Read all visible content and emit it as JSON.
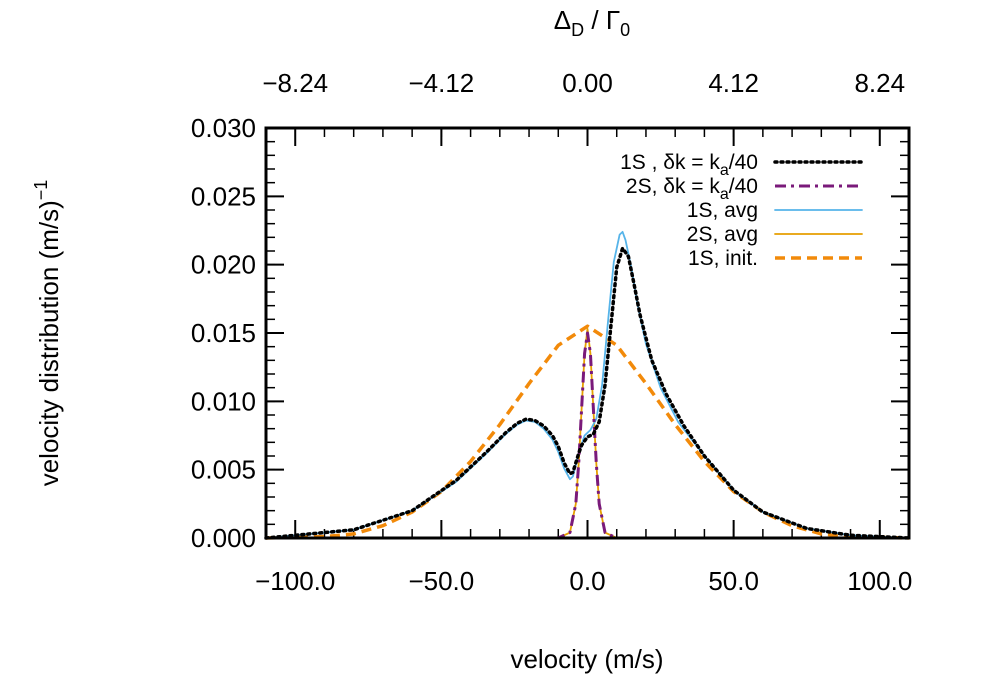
{
  "chart_data": {
    "type": "line",
    "xlabel": "velocity (m/s)",
    "ylabel": {
      "main": "velocity distribution (m/s)",
      "sup": "−1"
    },
    "top_axis_label": {
      "base": "Δ",
      "sub1": "D",
      "mid": " / Γ",
      "sub2": "0"
    },
    "xlim": [
      -110,
      110
    ],
    "ylim": [
      0,
      0.03
    ],
    "x_ticks": [
      {
        "value": -100,
        "label": "−100.0"
      },
      {
        "value": -50,
        "label": "−50.0"
      },
      {
        "value": 0,
        "label": "0.0"
      },
      {
        "value": 50,
        "label": "50.0"
      },
      {
        "value": 100,
        "label": "100.0"
      }
    ],
    "top_ticks": [
      {
        "value": -100,
        "label": "−8.24"
      },
      {
        "value": -50,
        "label": "−4.12"
      },
      {
        "value": 0,
        "label": "0.00"
      },
      {
        "value": 50,
        "label": "4.12"
      },
      {
        "value": 100,
        "label": "8.24"
      }
    ],
    "y_ticks": [
      {
        "value": 0.0,
        "label": "0.000"
      },
      {
        "value": 0.005,
        "label": "0.005"
      },
      {
        "value": 0.01,
        "label": "0.010"
      },
      {
        "value": 0.015,
        "label": "0.015"
      },
      {
        "value": 0.02,
        "label": "0.020"
      },
      {
        "value": 0.025,
        "label": "0.025"
      },
      {
        "value": 0.03,
        "label": "0.030"
      }
    ],
    "legend_position": "top-right",
    "series": [
      {
        "legend": {
          "main": "1S , δk = k",
          "sub": "a",
          "tail": "/40"
        },
        "color": "#000000",
        "style": "dotted",
        "points": [
          [
            -110,
            0.0
          ],
          [
            -80,
            0.0006
          ],
          [
            -60,
            0.002
          ],
          [
            -45,
            0.0042
          ],
          [
            -35,
            0.0062
          ],
          [
            -28,
            0.0077
          ],
          [
            -24,
            0.0084
          ],
          [
            -21,
            0.0087
          ],
          [
            -18,
            0.0086
          ],
          [
            -15,
            0.0082
          ],
          [
            -12,
            0.0075
          ],
          [
            -10,
            0.0067
          ],
          [
            -8,
            0.0055
          ],
          [
            -6,
            0.0047
          ],
          [
            -5,
            0.0048
          ],
          [
            -3,
            0.0062
          ],
          [
            -2,
            0.0068
          ],
          [
            0,
            0.0074
          ],
          [
            2,
            0.0076
          ],
          [
            4,
            0.0085
          ],
          [
            6,
            0.0112
          ],
          [
            8,
            0.0155
          ],
          [
            10,
            0.0198
          ],
          [
            12,
            0.0212
          ],
          [
            14,
            0.0206
          ],
          [
            16,
            0.0185
          ],
          [
            18,
            0.0163
          ],
          [
            22,
            0.013
          ],
          [
            27,
            0.0105
          ],
          [
            33,
            0.0082
          ],
          [
            40,
            0.006
          ],
          [
            50,
            0.0035
          ],
          [
            60,
            0.0019
          ],
          [
            75,
            0.0007
          ],
          [
            90,
            0.0002
          ],
          [
            110,
            0.0
          ]
        ]
      },
      {
        "legend": {
          "main": "2S, δk = k",
          "sub": "a",
          "tail": "/40"
        },
        "color": "#7a1a7a",
        "style": "dashdot",
        "points": [
          [
            -110,
            0.0
          ],
          [
            -10,
            0.0
          ],
          [
            -6,
            0.0004
          ],
          [
            -4,
            0.0025
          ],
          [
            -3,
            0.0055
          ],
          [
            -2,
            0.0095
          ],
          [
            -1,
            0.0135
          ],
          [
            0,
            0.015
          ],
          [
            1,
            0.0135
          ],
          [
            2,
            0.0095
          ],
          [
            3,
            0.0055
          ],
          [
            4,
            0.0025
          ],
          [
            6,
            0.0004
          ],
          [
            10,
            0.0
          ],
          [
            110,
            0.0
          ]
        ]
      },
      {
        "legend": {
          "main": "1S, avg"
        },
        "color": "#56b4e9",
        "style": "solid",
        "points": [
          [
            -110,
            0.0
          ],
          [
            -80,
            0.0006
          ],
          [
            -60,
            0.002
          ],
          [
            -45,
            0.0041
          ],
          [
            -35,
            0.0061
          ],
          [
            -28,
            0.0076
          ],
          [
            -24,
            0.0083
          ],
          [
            -21,
            0.0086
          ],
          [
            -18,
            0.0085
          ],
          [
            -15,
            0.008
          ],
          [
            -12,
            0.0072
          ],
          [
            -10,
            0.0063
          ],
          [
            -8,
            0.0051
          ],
          [
            -6,
            0.0043
          ],
          [
            -5,
            0.0045
          ],
          [
            -3,
            0.0062
          ],
          [
            -1,
            0.0075
          ],
          [
            1,
            0.0079
          ],
          [
            3,
            0.0087
          ],
          [
            5,
            0.0112
          ],
          [
            7,
            0.0158
          ],
          [
            9,
            0.0202
          ],
          [
            11,
            0.0222
          ],
          [
            12,
            0.0224
          ],
          [
            13,
            0.0218
          ],
          [
            15,
            0.0198
          ],
          [
            17,
            0.0172
          ],
          [
            20,
            0.0142
          ],
          [
            25,
            0.011
          ],
          [
            31,
            0.0085
          ],
          [
            40,
            0.006
          ],
          [
            50,
            0.0035
          ],
          [
            60,
            0.0019
          ],
          [
            75,
            0.0007
          ],
          [
            90,
            0.0002
          ],
          [
            110,
            0.0
          ]
        ]
      },
      {
        "legend": {
          "main": "2S, avg"
        },
        "color": "#e69f00",
        "style": "solid",
        "points": [
          [
            -110,
            0.0
          ],
          [
            -10,
            0.0
          ],
          [
            -6,
            0.0004
          ],
          [
            -4,
            0.0025
          ],
          [
            -3,
            0.0055
          ],
          [
            -2,
            0.0095
          ],
          [
            -1,
            0.0135
          ],
          [
            0,
            0.0153
          ],
          [
            1,
            0.0135
          ],
          [
            2,
            0.0095
          ],
          [
            3,
            0.0055
          ],
          [
            4,
            0.0025
          ],
          [
            6,
            0.0004
          ],
          [
            10,
            0.0
          ],
          [
            110,
            0.0
          ]
        ]
      },
      {
        "legend": {
          "main": "1S, init."
        },
        "color": "#f28a0a",
        "style": "dashed",
        "points": [
          [
            -110,
            0.0
          ],
          [
            -90,
            0.0001
          ],
          [
            -80,
            0.0003
          ],
          [
            -70,
            0.0009
          ],
          [
            -60,
            0.0019
          ],
          [
            -50,
            0.0034
          ],
          [
            -40,
            0.0056
          ],
          [
            -30,
            0.0083
          ],
          [
            -20,
            0.0113
          ],
          [
            -10,
            0.0141
          ],
          [
            0,
            0.0155
          ],
          [
            10,
            0.0141
          ],
          [
            20,
            0.0113
          ],
          [
            30,
            0.0083
          ],
          [
            40,
            0.0056
          ],
          [
            50,
            0.0034
          ],
          [
            60,
            0.0019
          ],
          [
            70,
            0.0009
          ],
          [
            80,
            0.0003
          ],
          [
            90,
            0.0001
          ],
          [
            110,
            0.0
          ]
        ]
      }
    ]
  }
}
